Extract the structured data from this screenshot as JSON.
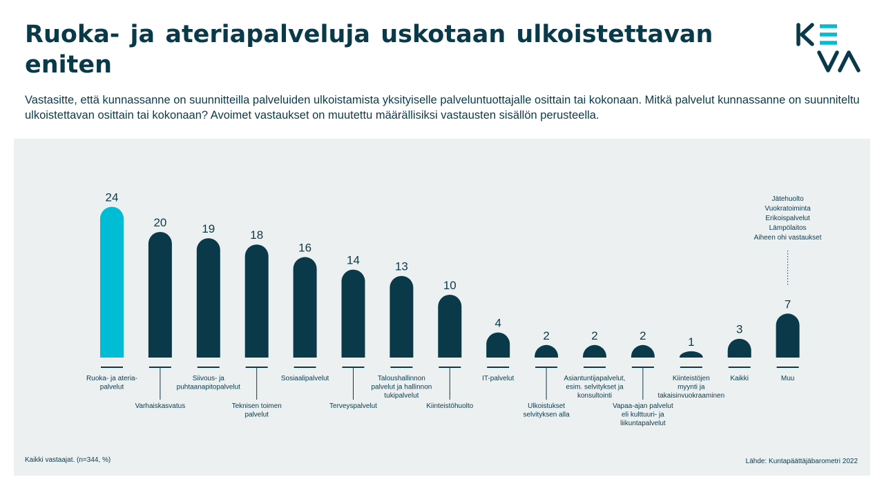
{
  "page": {
    "title": "Ruoka- ja ateriapalveluja uskotaan ulkoistettavan eniten",
    "subtitle": "Vastasitte, että kunnassanne on suunnitteilla palveluiden ulkoistamista yksityiselle palveluntuottajalle osittain tai kokonaan. Mitkä palvelut kunnassanne on suunniteltu ulkoistettavan osittain tai kokonaan? Avoimet vastaukset on muutettu määrällisiksi vastausten sisällön perusteella.",
    "footer_left": "Kaikki vastaajat. (n=344, %)",
    "footer_right": "Lähde: Kuntapäättäjäbarometri 2022",
    "logo": "KEVA"
  },
  "colors": {
    "highlight": "#00bcd4",
    "bar": "#0a3a4a",
    "panel": "#edf0f1",
    "text": "#0a3a4a",
    "logo_accent": "#00bcd4"
  },
  "chart_data": {
    "type": "bar",
    "title": "",
    "xlabel": "",
    "ylabel": "",
    "ylim": [
      0,
      24
    ],
    "grid": false,
    "categories": [
      "Ruoka- ja ateria-\npalvelut",
      "Varhaiskasvatus",
      "Siivous- ja\npuhtaanapitopalvelut",
      "Teknisen toimen\npalvelut",
      "Sosiaalipalvelut",
      "Terveyspalvelut",
      "Taloushallinnon\npalvelut ja hallinnon\ntukipalvelut",
      "Kiinteistöhuolto",
      "IT-palvelut",
      "Ulkoistukset\nselvityksen alla",
      "Asiantuntijapalvelut,\nesim. selvitykset ja\nkonsultointi",
      "Vapaa-ajan palvelut\neli kulttuuri- ja\nliikuntapalvelut",
      "Kiinteistöjen\nmyynti ja\ntakaisinvuokraaminen",
      "Kaikki",
      "Muu"
    ],
    "values": [
      24,
      20,
      19,
      18,
      16,
      14,
      13,
      10,
      4,
      2,
      2,
      2,
      1,
      3,
      7
    ],
    "label_position": [
      "top",
      "low",
      "top",
      "low",
      "top",
      "low",
      "top",
      "low",
      "top",
      "low",
      "top",
      "low",
      "top",
      "top",
      "top"
    ],
    "highlight_index": 0,
    "annotation": {
      "category": "Muu",
      "lines": [
        "Jätehuolto",
        "Vuokratoiminta",
        "Erikoispalvelut",
        "Lämpölaitos",
        "Aiheen ohi vastaukset"
      ]
    }
  }
}
